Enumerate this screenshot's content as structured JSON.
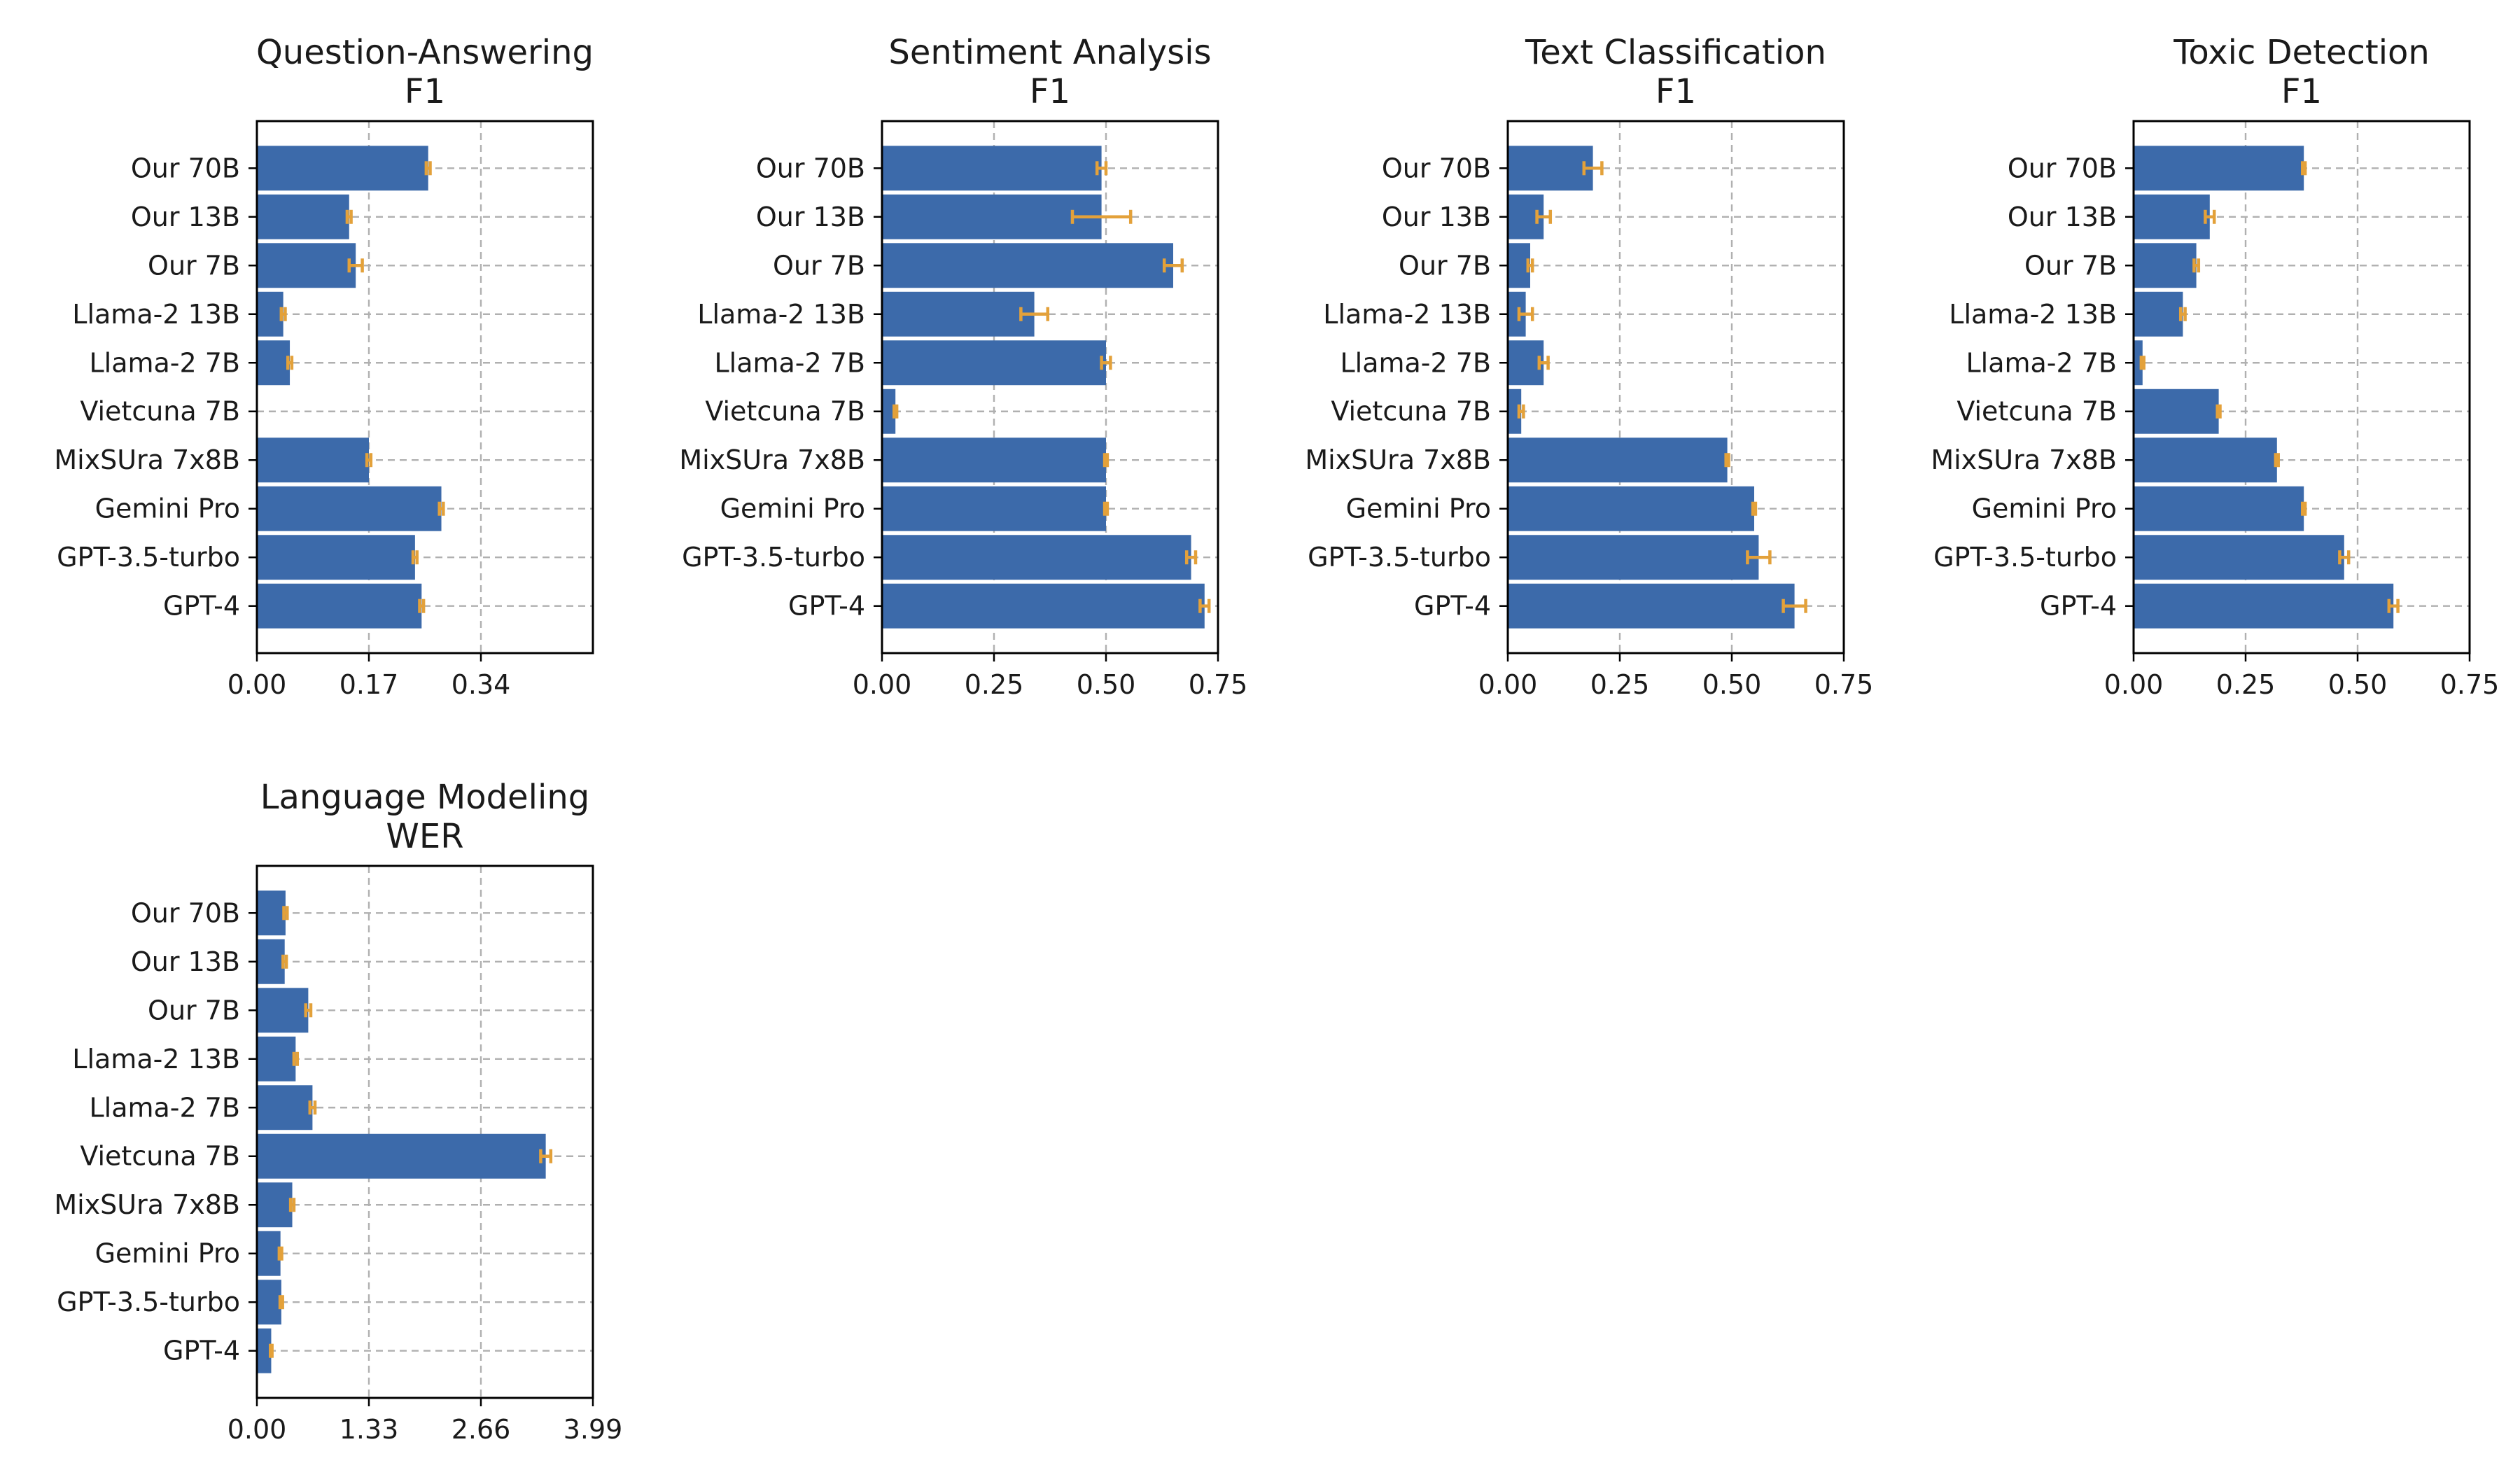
{
  "chart_data": [
    {
      "type": "bar",
      "orientation": "horizontal",
      "title": [
        "Question-Answering",
        "F1"
      ],
      "categories": [
        "Our 70B",
        "Our 13B",
        "Our 7B",
        "Llama-2 13B",
        "Llama-2 7B",
        "Vietcuna 7B",
        "MixSUra 7x8B",
        "Gemini Pro",
        "GPT-3.5-turbo",
        "GPT-4"
      ],
      "values": [
        0.26,
        0.14,
        0.15,
        0.04,
        0.05,
        0.0,
        0.17,
        0.28,
        0.24,
        0.25
      ],
      "errors": [
        0.003,
        0.003,
        0.01,
        0.003,
        0.003,
        0.0,
        0.003,
        0.003,
        0.003,
        0.003
      ],
      "xlim": [
        0,
        0.51
      ],
      "xticks": [
        "0.00",
        "0.17",
        "0.34"
      ],
      "xtick_values": [
        0,
        0.17,
        0.34
      ],
      "grid": true
    },
    {
      "type": "bar",
      "orientation": "horizontal",
      "title": [
        "Sentiment Analysis",
        "F1"
      ],
      "categories": [
        "Our 70B",
        "Our 13B",
        "Our 7B",
        "Llama-2 13B",
        "Llama-2 7B",
        "Vietcuna 7B",
        "MixSUra 7x8B",
        "Gemini Pro",
        "GPT-3.5-turbo",
        "GPT-4"
      ],
      "values": [
        0.49,
        0.49,
        0.65,
        0.34,
        0.5,
        0.03,
        0.5,
        0.5,
        0.69,
        0.72
      ],
      "errors": [
        0.01,
        0.065,
        0.02,
        0.03,
        0.01,
        0.003,
        0.003,
        0.003,
        0.01,
        0.01
      ],
      "xlim": [
        0,
        0.75
      ],
      "xticks": [
        "0.00",
        "0.25",
        "0.50",
        "0.75"
      ],
      "xtick_values": [
        0,
        0.25,
        0.5,
        0.75
      ],
      "grid": true
    },
    {
      "type": "bar",
      "orientation": "horizontal",
      "title": [
        "Text Classification",
        "F1"
      ],
      "categories": [
        "Our 70B",
        "Our 13B",
        "Our 7B",
        "Llama-2 13B",
        "Llama-2 7B",
        "Vietcuna 7B",
        "MixSUra 7x8B",
        "Gemini Pro",
        "GPT-3.5-turbo",
        "GPT-4"
      ],
      "values": [
        0.19,
        0.08,
        0.05,
        0.04,
        0.08,
        0.03,
        0.49,
        0.55,
        0.56,
        0.64
      ],
      "errors": [
        0.02,
        0.015,
        0.005,
        0.015,
        0.01,
        0.005,
        0.003,
        0.003,
        0.025,
        0.025
      ],
      "xlim": [
        0,
        0.75
      ],
      "xticks": [
        "0.00",
        "0.25",
        "0.50",
        "0.75"
      ],
      "xtick_values": [
        0,
        0.25,
        0.5,
        0.75
      ],
      "grid": true
    },
    {
      "type": "bar",
      "orientation": "horizontal",
      "title": [
        "Toxic Detection",
        "F1"
      ],
      "categories": [
        "Our 70B",
        "Our 13B",
        "Our 7B",
        "Llama-2 13B",
        "Llama-2 7B",
        "Vietcuna 7B",
        "MixSUra 7x8B",
        "Gemini Pro",
        "GPT-3.5-turbo",
        "GPT-4"
      ],
      "values": [
        0.38,
        0.17,
        0.14,
        0.11,
        0.02,
        0.19,
        0.32,
        0.38,
        0.47,
        0.58
      ],
      "errors": [
        0.003,
        0.01,
        0.005,
        0.005,
        0.003,
        0.003,
        0.003,
        0.003,
        0.01,
        0.01
      ],
      "xlim": [
        0,
        0.75
      ],
      "xticks": [
        "0.00",
        "0.25",
        "0.50",
        "0.75"
      ],
      "xtick_values": [
        0,
        0.25,
        0.5,
        0.75
      ],
      "grid": true
    },
    {
      "type": "bar",
      "orientation": "horizontal",
      "title": [
        "Language Modeling",
        "WER"
      ],
      "categories": [
        "Our 70B",
        "Our 13B",
        "Our 7B",
        "Llama-2 13B",
        "Llama-2 7B",
        "Vietcuna 7B",
        "MixSUra 7x8B",
        "Gemini Pro",
        "GPT-3.5-turbo",
        "GPT-4"
      ],
      "values": [
        0.34,
        0.33,
        0.61,
        0.46,
        0.66,
        3.43,
        0.42,
        0.28,
        0.29,
        0.17
      ],
      "errors": [
        0.02,
        0.02,
        0.03,
        0.02,
        0.03,
        0.06,
        0.02,
        0.015,
        0.015,
        0.01
      ],
      "xlim": [
        0,
        3.99
      ],
      "xticks": [
        "0.00",
        "1.33",
        "2.66",
        "3.99"
      ],
      "xtick_values": [
        0,
        1.33,
        2.66,
        3.99
      ],
      "grid": true
    }
  ]
}
